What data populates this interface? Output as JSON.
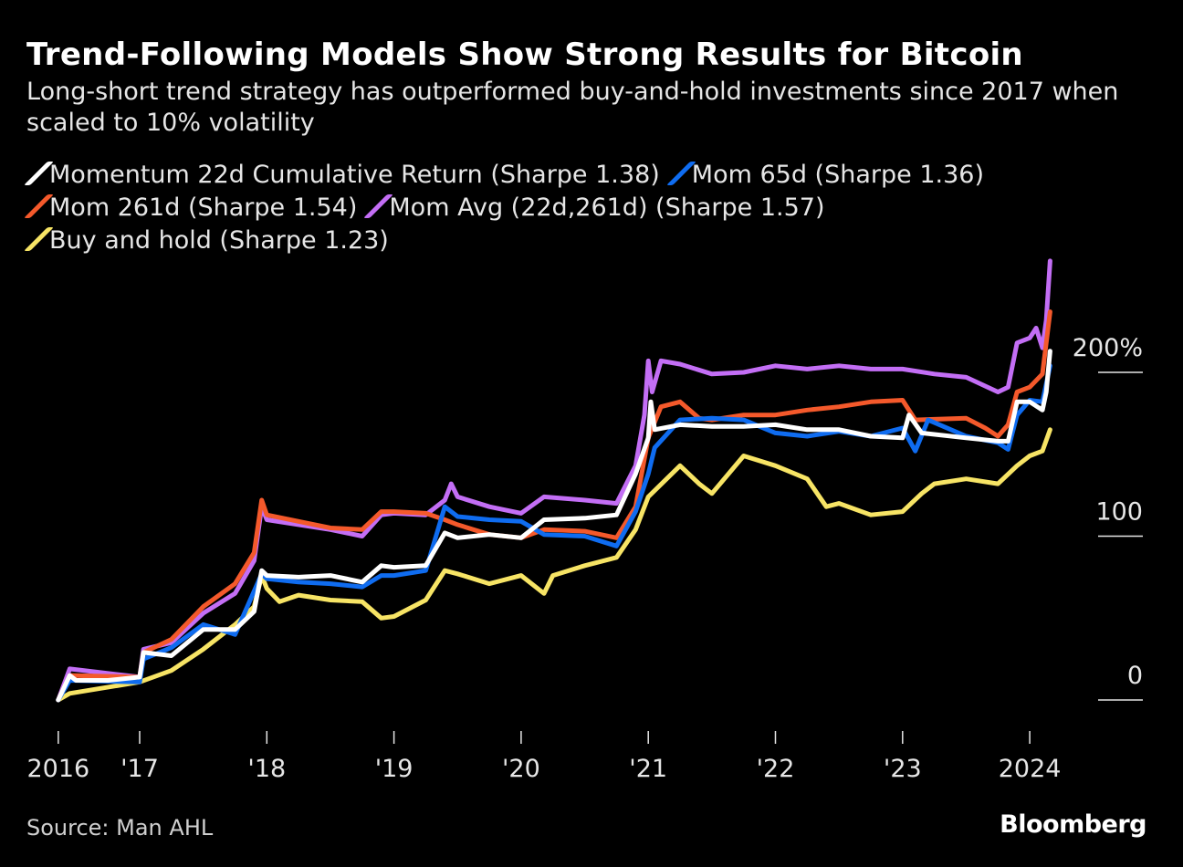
{
  "header": {
    "title": "Trend-Following Models Show Strong Results for Bitcoin",
    "subtitle": "Long-short trend strategy has outperformed buy-and-hold investments since 2017 when scaled to 10% volatility"
  },
  "footer": {
    "source": "Source: Man AHL",
    "logo": "Bloomberg"
  },
  "chart_data": {
    "type": "line",
    "title": "Trend-Following Models Show Strong Results for Bitcoin",
    "ylabel": "",
    "xlabel": "",
    "ylim": [
      -15,
      280
    ],
    "xlim": [
      2016.2,
      2024.6
    ],
    "grid": false,
    "legend_position": "top-left",
    "y_ticks": [
      {
        "label": "200%",
        "value": 200
      },
      {
        "label": "100",
        "value": 100
      },
      {
        "label": "0",
        "value": 0
      }
    ],
    "x_ticks": [
      {
        "label": "2016",
        "value": 2016.36
      },
      {
        "label": "'17",
        "value": 2017
      },
      {
        "label": "'18",
        "value": 2018
      },
      {
        "label": "'19",
        "value": 2019
      },
      {
        "label": "'20",
        "value": 2020
      },
      {
        "label": "'21",
        "value": 2021
      },
      {
        "label": "'22",
        "value": 2022
      },
      {
        "label": "'23",
        "value": 2023
      },
      {
        "label": "2024",
        "value": 2024
      }
    ],
    "series": [
      {
        "name": "Buy and hold (Sharpe 1.23)",
        "color": "#f7e465",
        "x": [
          2016.36,
          2016.45,
          2017.0,
          2017.25,
          2017.5,
          2017.75,
          2017.9,
          2017.96,
          2018.0,
          2018.1,
          2018.25,
          2018.5,
          2018.75,
          2018.9,
          2019.0,
          2019.25,
          2019.4,
          2019.5,
          2019.75,
          2020.0,
          2020.18,
          2020.25,
          2020.5,
          2020.75,
          2020.9,
          2021.0,
          2021.25,
          2021.4,
          2021.5,
          2021.75,
          2022.0,
          2022.25,
          2022.4,
          2022.5,
          2022.75,
          2023.0,
          2023.15,
          2023.25,
          2023.5,
          2023.75,
          2023.9,
          2024.0,
          2024.1,
          2024.16
        ],
        "y": [
          0,
          4,
          11,
          18,
          31,
          46,
          57,
          76,
          68,
          60,
          64,
          61,
          60,
          50,
          51,
          61,
          79,
          77,
          71,
          76,
          65,
          76,
          82,
          87,
          104,
          124,
          143,
          132,
          126,
          149,
          143,
          135,
          118,
          120,
          113,
          115,
          126,
          132,
          135,
          132,
          143,
          149,
          152,
          165
        ]
      },
      {
        "name": "Mom Avg (22d,261d) (Sharpe 1.57)",
        "color": "#c36ef5",
        "x": [
          2016.36,
          2016.45,
          2017.0,
          2017.03,
          2017.25,
          2017.5,
          2017.75,
          2017.9,
          2017.96,
          2018.0,
          2018.25,
          2018.5,
          2018.75,
          2018.9,
          2019.0,
          2019.25,
          2019.4,
          2019.45,
          2019.5,
          2019.75,
          2020.0,
          2020.18,
          2020.5,
          2020.75,
          2020.9,
          2020.97,
          2021.0,
          2021.03,
          2021.1,
          2021.25,
          2021.5,
          2021.75,
          2022.0,
          2022.25,
          2022.5,
          2022.75,
          2023.0,
          2023.25,
          2023.5,
          2023.75,
          2023.83,
          2023.9,
          2024.0,
          2024.05,
          2024.1,
          2024.13,
          2024.16
        ],
        "y": [
          0,
          19,
          14,
          31,
          35,
          53,
          65,
          85,
          118,
          110,
          107,
          104,
          100,
          113,
          114,
          113,
          122,
          132,
          124,
          118,
          114,
          124,
          122,
          120,
          143,
          174,
          207,
          188,
          207,
          205,
          199,
          200,
          204,
          202,
          204,
          202,
          202,
          199,
          197,
          188,
          191,
          218,
          221,
          227,
          215,
          232,
          268
        ]
      },
      {
        "name": "Mom 261d (Sharpe 1.54)",
        "color": "#f4592b",
        "x": [
          2016.36,
          2016.45,
          2017.0,
          2017.03,
          2017.25,
          2017.5,
          2017.75,
          2017.9,
          2017.96,
          2018.0,
          2018.25,
          2018.5,
          2018.75,
          2018.9,
          2019.0,
          2019.25,
          2019.4,
          2019.5,
          2019.75,
          2020.0,
          2020.18,
          2020.5,
          2020.75,
          2020.9,
          2021.0,
          2021.1,
          2021.25,
          2021.4,
          2021.5,
          2021.75,
          2022.0,
          2022.25,
          2022.5,
          2022.75,
          2023.0,
          2023.1,
          2023.5,
          2023.65,
          2023.75,
          2023.83,
          2023.9,
          2024.0,
          2024.1,
          2024.16
        ],
        "y": [
          0,
          15,
          14,
          29,
          37,
          57,
          71,
          90,
          122,
          113,
          109,
          105,
          104,
          115,
          115,
          114,
          110,
          107,
          101,
          99,
          104,
          103,
          99,
          118,
          160,
          179,
          182,
          172,
          171,
          174,
          174,
          177,
          179,
          182,
          183,
          171,
          172,
          166,
          161,
          168,
          188,
          191,
          199,
          237
        ]
      },
      {
        "name": "Mom 65d (Sharpe 1.36)",
        "color": "#0f6cf0",
        "x": [
          2016.36,
          2016.45,
          2017.0,
          2017.03,
          2017.25,
          2017.5,
          2017.75,
          2017.96,
          2018.0,
          2018.25,
          2018.5,
          2018.75,
          2018.9,
          2019.0,
          2019.25,
          2019.4,
          2019.5,
          2019.75,
          2020.0,
          2020.18,
          2020.5,
          2020.75,
          2020.9,
          2021.0,
          2021.05,
          2021.25,
          2021.5,
          2021.75,
          2022.0,
          2022.25,
          2022.5,
          2022.75,
          2023.0,
          2023.1,
          2023.2,
          2023.5,
          2023.75,
          2023.83,
          2023.9,
          2024.0,
          2024.1,
          2024.16
        ],
        "y": [
          0,
          12,
          11,
          25,
          32,
          46,
          40,
          77,
          74,
          72,
          71,
          69,
          76,
          76,
          79,
          118,
          112,
          110,
          109,
          101,
          100,
          94,
          115,
          138,
          154,
          171,
          172,
          171,
          163,
          161,
          164,
          161,
          166,
          152,
          171,
          161,
          157,
          153,
          174,
          183,
          182,
          204
        ]
      },
      {
        "name": "Momentum 22d Cumulative Return (Sharpe 1.38)",
        "color": "#ffffff",
        "x": [
          2016.36,
          2016.45,
          2016.5,
          2016.75,
          2017.0,
          2017.03,
          2017.25,
          2017.5,
          2017.75,
          2017.9,
          2017.96,
          2018.0,
          2018.25,
          2018.5,
          2018.75,
          2018.9,
          2019.0,
          2019.25,
          2019.4,
          2019.5,
          2019.75,
          2020.0,
          2020.18,
          2020.5,
          2020.75,
          2020.9,
          2021.0,
          2021.02,
          2021.05,
          2021.25,
          2021.5,
          2021.75,
          2022.0,
          2022.25,
          2022.5,
          2022.75,
          2023.0,
          2023.05,
          2023.15,
          2023.5,
          2023.75,
          2023.83,
          2023.9,
          2024.0,
          2024.1,
          2024.13,
          2024.16
        ],
        "y": [
          0,
          15,
          12,
          12,
          14,
          29,
          27,
          43,
          43,
          54,
          79,
          76,
          75,
          76,
          72,
          82,
          81,
          82,
          102,
          99,
          101,
          99,
          110,
          111,
          113,
          138,
          160,
          182,
          165,
          168,
          167,
          167,
          168,
          165,
          165,
          161,
          160,
          174,
          163,
          160,
          158,
          158,
          182,
          182,
          177,
          188,
          213
        ]
      }
    ]
  },
  "legend_order": [
    4,
    3,
    2,
    1,
    0
  ]
}
